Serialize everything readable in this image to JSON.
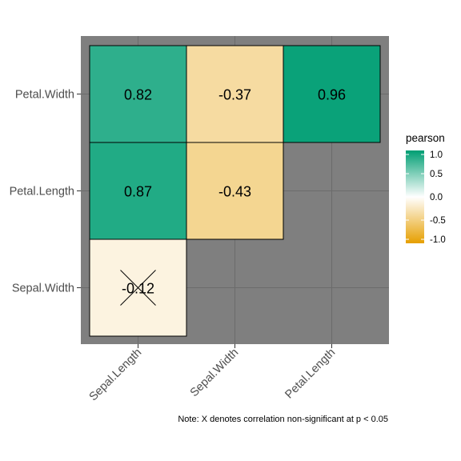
{
  "chart_data": {
    "type": "heatmap",
    "x_categories": [
      "Sepal.Length",
      "Sepal.Width",
      "Petal.Length"
    ],
    "y_categories": [
      "Sepal.Width",
      "Petal.Length",
      "Petal.Width"
    ],
    "cells": [
      {
        "x": "Sepal.Length",
        "y": "Petal.Width",
        "value": 0.82,
        "label": "0.82",
        "significant": true
      },
      {
        "x": "Sepal.Width",
        "y": "Petal.Width",
        "value": -0.37,
        "label": "-0.37",
        "significant": true
      },
      {
        "x": "Petal.Length",
        "y": "Petal.Width",
        "value": 0.96,
        "label": "0.96",
        "significant": true
      },
      {
        "x": "Sepal.Length",
        "y": "Petal.Length",
        "value": 0.87,
        "label": "0.87",
        "significant": true
      },
      {
        "x": "Sepal.Width",
        "y": "Petal.Length",
        "value": -0.43,
        "label": "-0.43",
        "significant": true
      },
      {
        "x": "Sepal.Length",
        "y": "Sepal.Width",
        "value": -0.12,
        "label": "-0.12",
        "significant": false
      }
    ],
    "legend": {
      "title": "pearson",
      "ticks": [
        "1.0",
        "0.5",
        "0.0",
        "-0.5",
        "-1.0"
      ],
      "tick_values": [
        1.0,
        0.5,
        0.0,
        -0.5,
        -1.0
      ],
      "range": [
        -1,
        1
      ],
      "placement": "right",
      "low_color": "#E69F00",
      "mid_color": "#FFFFFF",
      "high_color": "#009E73"
    },
    "note": "Note: X denotes correlation non-significant at p < 0.05",
    "panel_color": "#7F7F7F",
    "grid": true
  }
}
